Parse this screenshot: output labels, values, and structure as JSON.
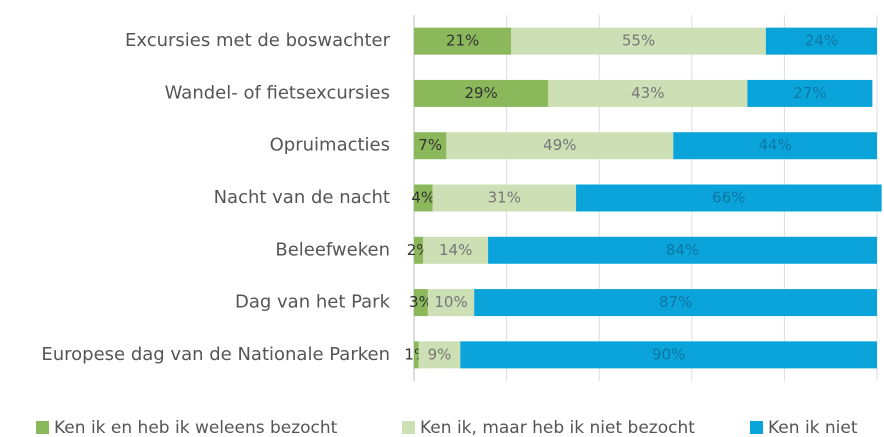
{
  "chart_data": {
    "type": "stacked-barh",
    "categories": [
      "Excursies met de boswachter",
      "Wandel- of fietsexcursies",
      "Opruimacties",
      "Nacht van de nacht",
      "Beleefweken",
      "Dag van het Park",
      "Europese dag van de Nationale Parken"
    ],
    "series": [
      {
        "name": "Ken ik en heb ik weleens bezocht",
        "color": "#8cb85c",
        "values": [
          21,
          29,
          7,
          4,
          2,
          3,
          1
        ],
        "value_labels": [
          "21%",
          "29%",
          "7%",
          "4%",
          "2%",
          "3%",
          "1%"
        ]
      },
      {
        "name": "Ken ik, maar heb ik niet bezocht",
        "color": "#cddfb4",
        "values": [
          55,
          43,
          49,
          31,
          14,
          10,
          9
        ],
        "value_labels": [
          "55%",
          "43%",
          "49%",
          "31%",
          "14%",
          "10%",
          "9%"
        ]
      },
      {
        "name": "Ken ik niet",
        "color": "#0ba4da",
        "values": [
          24,
          27,
          44,
          66,
          84,
          87,
          90
        ],
        "value_labels": [
          "24%",
          "27%",
          "44%",
          "66%",
          "84%",
          "87%",
          "90%"
        ]
      }
    ],
    "xlim": [
      0,
      100
    ],
    "xticks": [
      0,
      20,
      40,
      60,
      80,
      100
    ],
    "grid": true,
    "legend": "bottom"
  }
}
